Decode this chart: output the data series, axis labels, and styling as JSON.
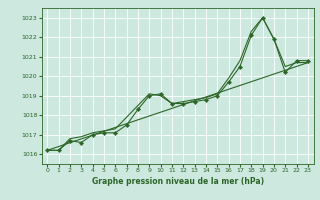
{
  "title": "Graphe pression niveau de la mer (hPa)",
  "bg_color": "#cce8df",
  "grid_color": "#ffffff",
  "line_color": "#2d6628",
  "ylim": [
    1015.5,
    1023.5
  ],
  "xlim": [
    -0.5,
    23.5
  ],
  "yticks": [
    1016,
    1017,
    1018,
    1019,
    1020,
    1021,
    1022,
    1023
  ],
  "xticks": [
    0,
    1,
    2,
    3,
    4,
    5,
    6,
    7,
    8,
    9,
    10,
    11,
    12,
    13,
    14,
    15,
    16,
    17,
    18,
    19,
    20,
    21,
    22,
    23
  ],
  "series": [
    {
      "x": [
        0,
        1,
        2,
        3,
        4,
        5,
        6,
        7,
        8,
        9,
        10,
        11,
        12,
        13,
        14,
        15,
        16,
        17,
        18,
        19,
        20,
        21,
        22,
        23
      ],
      "y": [
        1016.2,
        1016.2,
        1016.7,
        1016.6,
        1017.0,
        1017.1,
        1017.1,
        1017.5,
        1018.3,
        1019.0,
        1019.1,
        1018.6,
        1018.6,
        1018.7,
        1018.8,
        1019.0,
        1019.7,
        1020.5,
        1022.1,
        1023.0,
        1021.9,
        1020.2,
        1020.8,
        1020.8
      ],
      "with_markers": true
    },
    {
      "x": [
        0,
        1,
        2,
        3,
        4,
        5,
        6,
        7,
        8,
        9,
        10,
        11,
        12,
        13,
        14,
        15,
        16,
        17,
        18,
        19,
        20,
        21,
        22,
        23
      ],
      "y": [
        1016.2,
        1016.2,
        1016.8,
        1016.9,
        1017.1,
        1017.2,
        1017.3,
        1017.9,
        1018.5,
        1019.1,
        1019.0,
        1018.6,
        1018.7,
        1018.8,
        1018.9,
        1019.1,
        1019.9,
        1020.8,
        1022.3,
        1023.0,
        1021.9,
        1020.5,
        1020.7,
        1020.7
      ],
      "with_markers": false
    },
    {
      "x": [
        0,
        23
      ],
      "y": [
        1016.2,
        1020.7
      ],
      "with_markers": false
    }
  ]
}
